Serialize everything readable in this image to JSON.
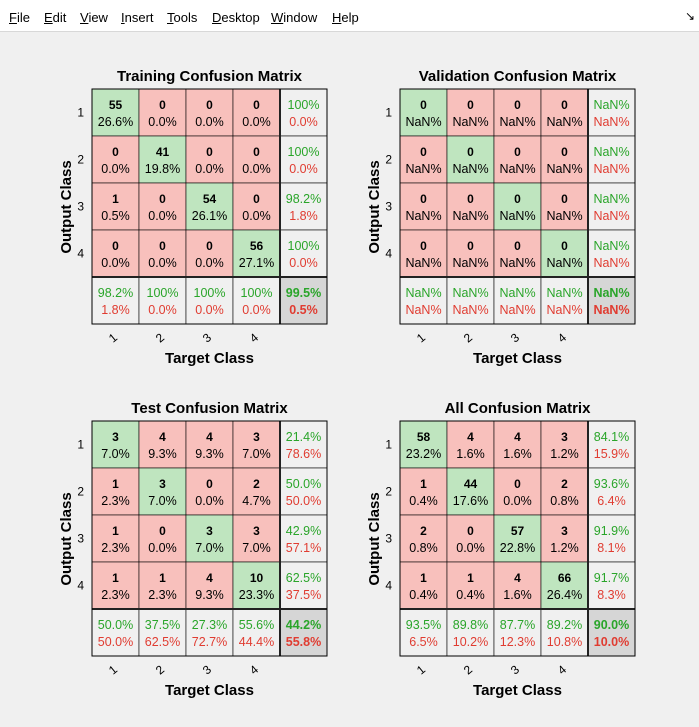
{
  "menu": {
    "items": [
      {
        "first": "F",
        "rest": "ile"
      },
      {
        "first": "E",
        "rest": "dit"
      },
      {
        "first": "V",
        "rest": "iew"
      },
      {
        "first": "I",
        "rest": "nsert"
      },
      {
        "first": "T",
        "rest": "ools"
      },
      {
        "first": "D",
        "rest": "esktop"
      },
      {
        "first": "W",
        "rest": "indow"
      },
      {
        "first": "H",
        "rest": "elp"
      }
    ],
    "dock_glyph": "↘"
  },
  "colors": {
    "diag": "#bfe5bf",
    "off": "#f8c0bc",
    "summary": "#f0f0f0",
    "corner": "#d6d6d6",
    "green": "#2aa52a",
    "red": "#e03c31"
  },
  "chart_data": [
    {
      "type": "heatmap",
      "title": "Training Confusion Matrix",
      "xlabel": "Target Class",
      "ylabel": "Output Class",
      "classes": [
        "1",
        "2",
        "3",
        "4"
      ],
      "cells": [
        [
          [
            "55",
            "26.6%"
          ],
          [
            "0",
            "0.0%"
          ],
          [
            "0",
            "0.0%"
          ],
          [
            "0",
            "0.0%"
          ]
        ],
        [
          [
            "0",
            "0.0%"
          ],
          [
            "41",
            "19.8%"
          ],
          [
            "0",
            "0.0%"
          ],
          [
            "0",
            "0.0%"
          ]
        ],
        [
          [
            "1",
            "0.5%"
          ],
          [
            "0",
            "0.0%"
          ],
          [
            "54",
            "26.1%"
          ],
          [
            "0",
            "0.0%"
          ]
        ],
        [
          [
            "0",
            "0.0%"
          ],
          [
            "0",
            "0.0%"
          ],
          [
            "0",
            "0.0%"
          ],
          [
            "56",
            "27.1%"
          ]
        ]
      ],
      "row_summary": [
        [
          "100%",
          "0.0%"
        ],
        [
          "100%",
          "0.0%"
        ],
        [
          "98.2%",
          "1.8%"
        ],
        [
          "100%",
          "0.0%"
        ]
      ],
      "col_summary": [
        [
          "98.2%",
          "1.8%"
        ],
        [
          "100%",
          "0.0%"
        ],
        [
          "100%",
          "0.0%"
        ],
        [
          "100%",
          "0.0%"
        ]
      ],
      "overall": [
        "99.5%",
        "0.5%"
      ]
    },
    {
      "type": "heatmap",
      "title": "Validation Confusion Matrix",
      "xlabel": "Target Class",
      "ylabel": "Output Class",
      "classes": [
        "1",
        "2",
        "3",
        "4"
      ],
      "cells": [
        [
          [
            "0",
            "NaN%"
          ],
          [
            "0",
            "NaN%"
          ],
          [
            "0",
            "NaN%"
          ],
          [
            "0",
            "NaN%"
          ]
        ],
        [
          [
            "0",
            "NaN%"
          ],
          [
            "0",
            "NaN%"
          ],
          [
            "0",
            "NaN%"
          ],
          [
            "0",
            "NaN%"
          ]
        ],
        [
          [
            "0",
            "NaN%"
          ],
          [
            "0",
            "NaN%"
          ],
          [
            "0",
            "NaN%"
          ],
          [
            "0",
            "NaN%"
          ]
        ],
        [
          [
            "0",
            "NaN%"
          ],
          [
            "0",
            "NaN%"
          ],
          [
            "0",
            "NaN%"
          ],
          [
            "0",
            "NaN%"
          ]
        ]
      ],
      "row_summary": [
        [
          "NaN%",
          "NaN%"
        ],
        [
          "NaN%",
          "NaN%"
        ],
        [
          "NaN%",
          "NaN%"
        ],
        [
          "NaN%",
          "NaN%"
        ]
      ],
      "col_summary": [
        [
          "NaN%",
          "NaN%"
        ],
        [
          "NaN%",
          "NaN%"
        ],
        [
          "NaN%",
          "NaN%"
        ],
        [
          "NaN%",
          "NaN%"
        ]
      ],
      "overall": [
        "NaN%",
        "NaN%"
      ]
    },
    {
      "type": "heatmap",
      "title": "Test Confusion Matrix",
      "xlabel": "Target Class",
      "ylabel": "Output Class",
      "classes": [
        "1",
        "2",
        "3",
        "4"
      ],
      "cells": [
        [
          [
            "3",
            "7.0%"
          ],
          [
            "4",
            "9.3%"
          ],
          [
            "4",
            "9.3%"
          ],
          [
            "3",
            "7.0%"
          ]
        ],
        [
          [
            "1",
            "2.3%"
          ],
          [
            "3",
            "7.0%"
          ],
          [
            "0",
            "0.0%"
          ],
          [
            "2",
            "4.7%"
          ]
        ],
        [
          [
            "1",
            "2.3%"
          ],
          [
            "0",
            "0.0%"
          ],
          [
            "3",
            "7.0%"
          ],
          [
            "3",
            "7.0%"
          ]
        ],
        [
          [
            "1",
            "2.3%"
          ],
          [
            "1",
            "2.3%"
          ],
          [
            "4",
            "9.3%"
          ],
          [
            "10",
            "23.3%"
          ]
        ]
      ],
      "row_summary": [
        [
          "21.4%",
          "78.6%"
        ],
        [
          "50.0%",
          "50.0%"
        ],
        [
          "42.9%",
          "57.1%"
        ],
        [
          "62.5%",
          "37.5%"
        ]
      ],
      "col_summary": [
        [
          "50.0%",
          "50.0%"
        ],
        [
          "37.5%",
          "62.5%"
        ],
        [
          "27.3%",
          "72.7%"
        ],
        [
          "55.6%",
          "44.4%"
        ]
      ],
      "overall": [
        "44.2%",
        "55.8%"
      ]
    },
    {
      "type": "heatmap",
      "title": "All Confusion Matrix",
      "xlabel": "Target Class",
      "ylabel": "Output Class",
      "classes": [
        "1",
        "2",
        "3",
        "4"
      ],
      "cells": [
        [
          [
            "58",
            "23.2%"
          ],
          [
            "4",
            "1.6%"
          ],
          [
            "4",
            "1.6%"
          ],
          [
            "3",
            "1.2%"
          ]
        ],
        [
          [
            "1",
            "0.4%"
          ],
          [
            "44",
            "17.6%"
          ],
          [
            "0",
            "0.0%"
          ],
          [
            "2",
            "0.8%"
          ]
        ],
        [
          [
            "2",
            "0.8%"
          ],
          [
            "0",
            "0.0%"
          ],
          [
            "57",
            "22.8%"
          ],
          [
            "3",
            "1.2%"
          ]
        ],
        [
          [
            "1",
            "0.4%"
          ],
          [
            "1",
            "0.4%"
          ],
          [
            "4",
            "1.6%"
          ],
          [
            "66",
            "26.4%"
          ]
        ]
      ],
      "row_summary": [
        [
          "84.1%",
          "15.9%"
        ],
        [
          "93.6%",
          "6.4%"
        ],
        [
          "91.9%",
          "8.1%"
        ],
        [
          "91.7%",
          "8.3%"
        ]
      ],
      "col_summary": [
        [
          "93.5%",
          "6.5%"
        ],
        [
          "89.8%",
          "10.2%"
        ],
        [
          "87.7%",
          "12.3%"
        ],
        [
          "89.2%",
          "10.8%"
        ]
      ],
      "overall": [
        "90.0%",
        "10.0%"
      ]
    }
  ]
}
